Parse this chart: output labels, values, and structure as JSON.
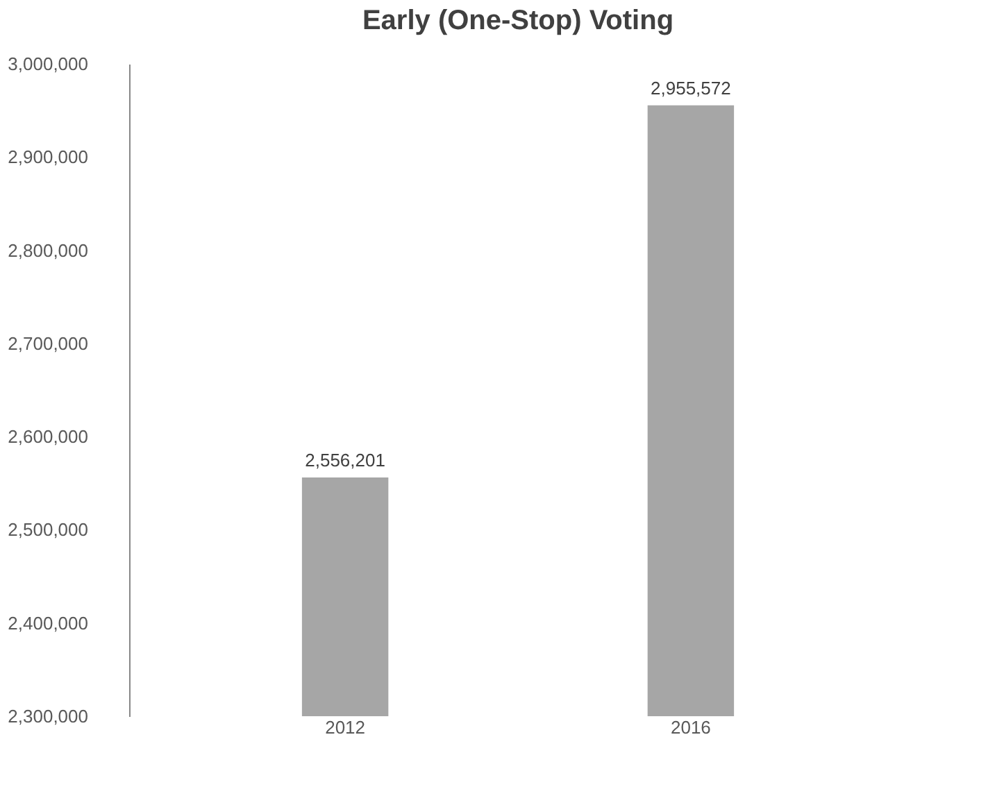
{
  "chart_data": {
    "type": "bar",
    "title": "Early (One-Stop) Voting",
    "categories": [
      "2012",
      "2016"
    ],
    "values": [
      2556201,
      2955572
    ],
    "value_labels": [
      "2,556,201",
      "2,955,572"
    ],
    "color": "#a6a6a6",
    "ylim": [
      2300000,
      3000000
    ],
    "yticks": [
      {
        "value": 2300000,
        "label": "2,300,000"
      },
      {
        "value": 2400000,
        "label": "2,400,000"
      },
      {
        "value": 2500000,
        "label": "2,500,000"
      },
      {
        "value": 2600000,
        "label": "2,600,000"
      },
      {
        "value": 2700000,
        "label": "2,700,000"
      },
      {
        "value": 2800000,
        "label": "2,800,000"
      },
      {
        "value": 2900000,
        "label": "2,900,000"
      },
      {
        "value": 3000000,
        "label": "3,000,000"
      }
    ],
    "grid": false
  }
}
